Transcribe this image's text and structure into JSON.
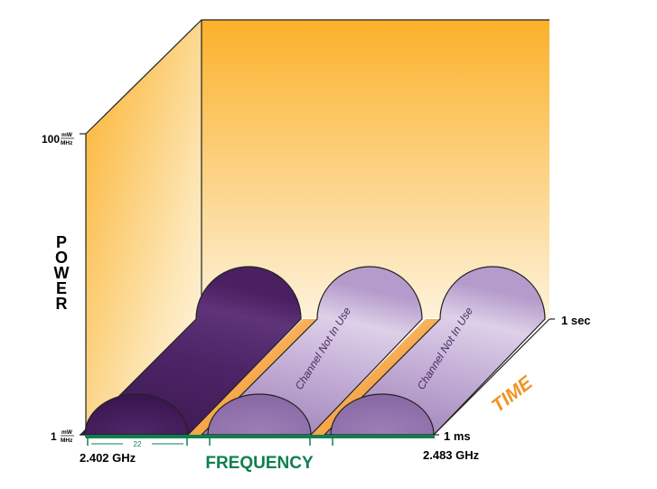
{
  "axes": {
    "power_label": "POWER",
    "power_max": "100",
    "power_min": "1",
    "power_unit_top": "mW",
    "power_unit_bottom": "MHz",
    "frequency_label": "FREQUENCY",
    "freq_start": "2.402 GHz",
    "freq_end": "2.483 GHz",
    "channel_width": "22",
    "time_label": "TIME",
    "time_start": "1 ms",
    "time_end": "1 sec"
  },
  "channels": [
    {
      "label": "",
      "state": "in-use",
      "color": "#4a2060"
    },
    {
      "label": "Channel Not In Use",
      "state": "idle",
      "color": "#b79fcb"
    },
    {
      "label": "Channel Not In Use",
      "state": "idle",
      "color": "#b79fcb"
    }
  ],
  "colors": {
    "wall_top": "#fbb12a",
    "wall_bottom": "#fdf0d2",
    "frequency": "#0f7f4f",
    "time": "#f29221"
  }
}
